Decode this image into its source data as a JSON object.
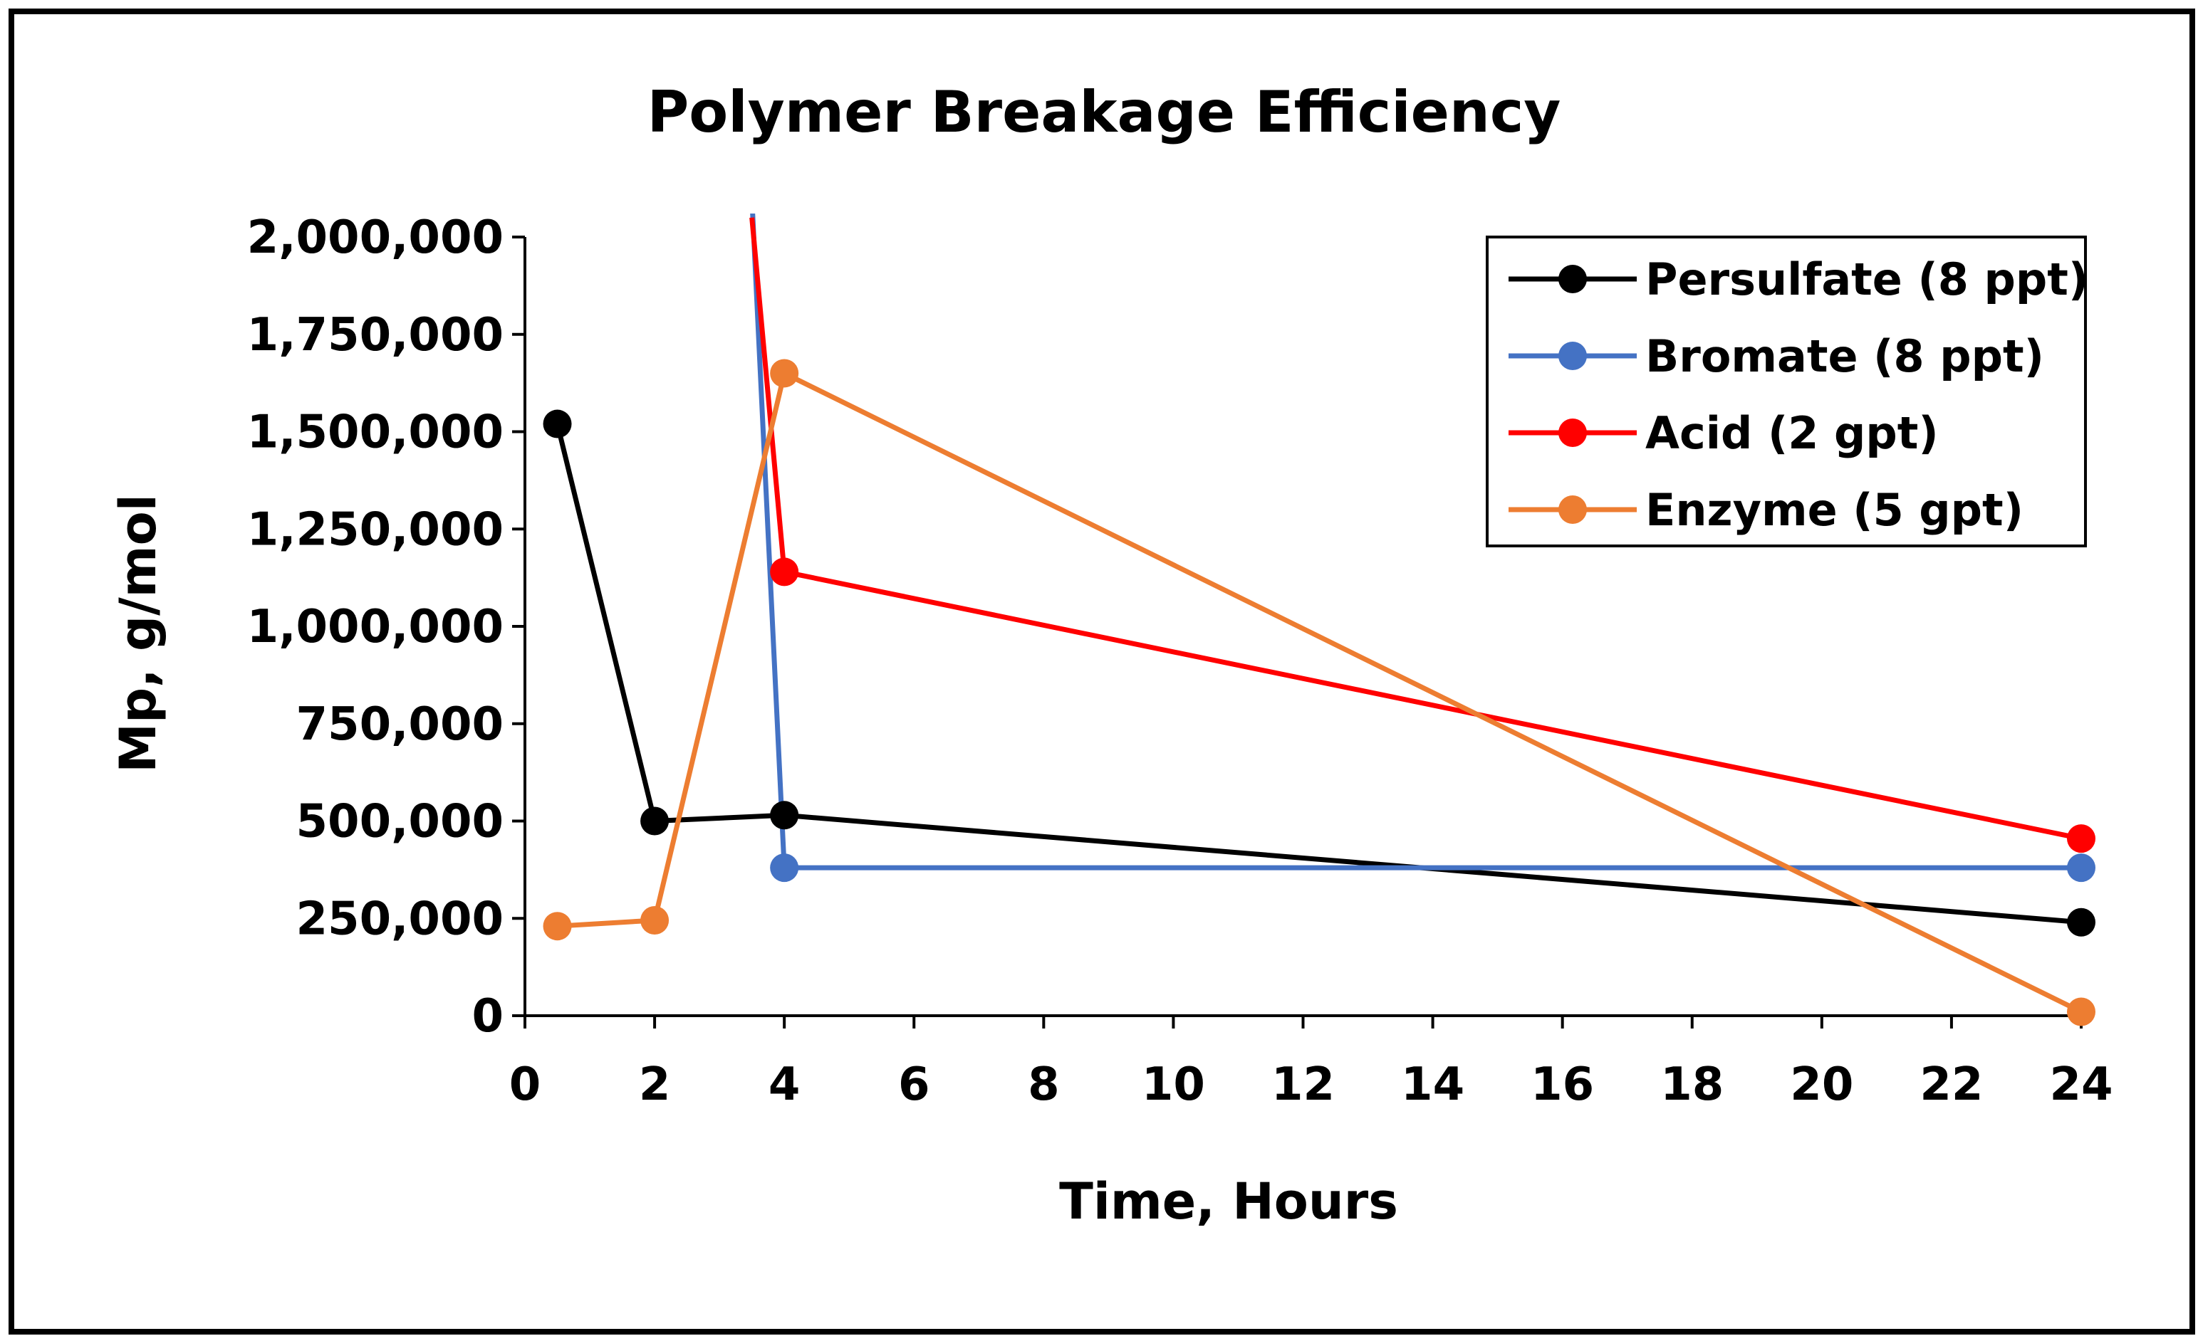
{
  "chart_data": {
    "type": "line",
    "title": "Polymer Breakage Efficiency",
    "xlabel": "Time, Hours",
    "ylabel": "Mp, g/mol",
    "xlim": [
      0,
      24
    ],
    "ylim": [
      0,
      2000000
    ],
    "xticks": [
      "0",
      "2",
      "4",
      "6",
      "8",
      "10",
      "12",
      "14",
      "16",
      "18",
      "20",
      "22",
      "24"
    ],
    "yticks": [
      "0",
      "250,000",
      "500,000",
      "750,000",
      "1,000,000",
      "1,250,000",
      "1,500,000",
      "1,750,000",
      "2,000,000"
    ],
    "xtick_values": [
      0,
      2,
      4,
      6,
      8,
      10,
      12,
      14,
      16,
      18,
      20,
      22,
      24
    ],
    "ytick_values": [
      0,
      250000,
      500000,
      750000,
      1000000,
      1250000,
      1500000,
      1750000,
      2000000
    ],
    "grid": false,
    "legend_position": "top-right",
    "series": [
      {
        "name": "Persulfate (8 ppt)",
        "color": "#000000",
        "points": [
          [
            0.5,
            1520000
          ],
          [
            2,
            500000
          ],
          [
            4,
            515000
          ],
          [
            24,
            240000
          ]
        ]
      },
      {
        "name": "Bromate (8 ppt)",
        "color": "#4472C4",
        "points": [
          [
            3.5,
            2100000
          ],
          [
            4,
            380000
          ],
          [
            24,
            380000
          ]
        ],
        "markers_from": 1
      },
      {
        "name": "Acid (2 gpt)",
        "color": "#FF0000",
        "points": [
          [
            3.5,
            2050000
          ],
          [
            4,
            1140000
          ],
          [
            24,
            455000
          ]
        ],
        "markers_from": 1
      },
      {
        "name": "Enzyme (5 gpt)",
        "color": "#ED7D31",
        "points": [
          [
            0.5,
            230000
          ],
          [
            2,
            245000
          ],
          [
            4,
            1650000
          ],
          [
            24,
            10000
          ]
        ]
      }
    ]
  }
}
